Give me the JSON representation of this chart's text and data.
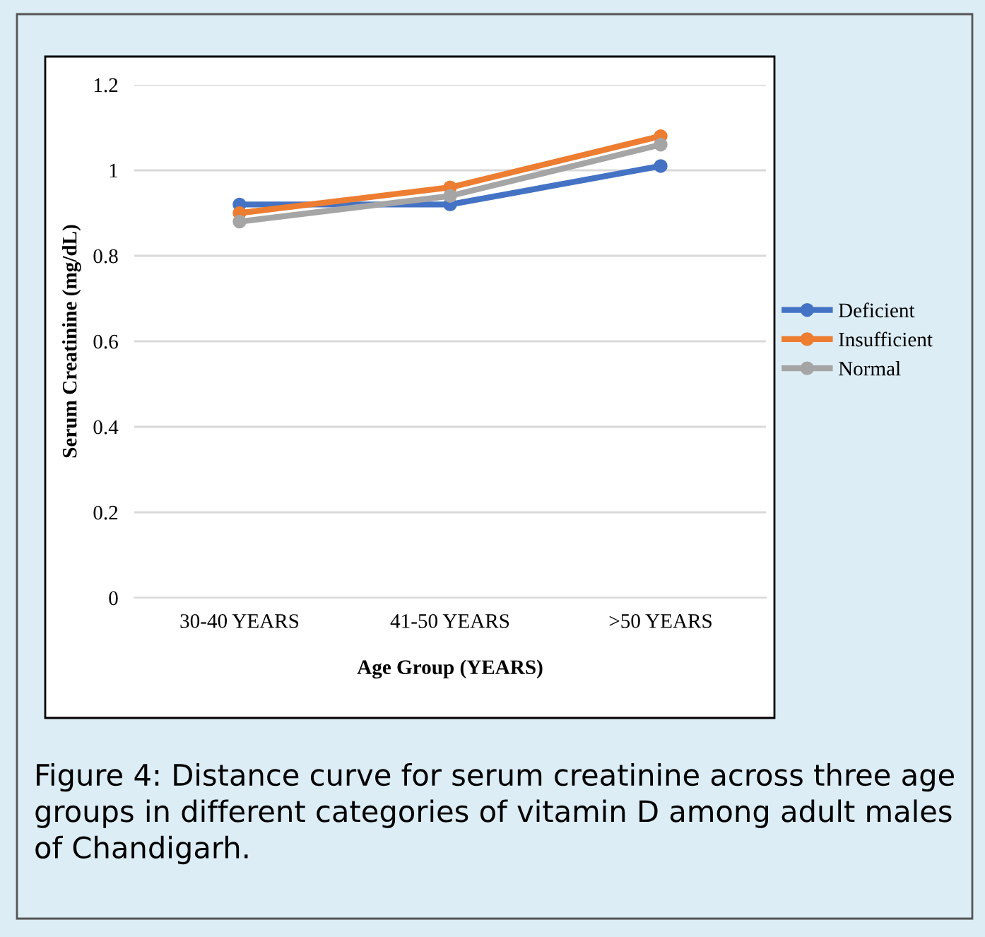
{
  "chart_data": {
    "type": "line",
    "xlabel": "Age Group (YEARS)",
    "ylabel": "Serum Creatinine (mg/dL)",
    "categories": [
      "30-40 YEARS",
      "41-50 YEARS",
      ">50 YEARS"
    ],
    "series": [
      {
        "name": "Deficient",
        "color": "#4472c4",
        "values": [
          0.92,
          0.92,
          1.01
        ]
      },
      {
        "name": "Insufficient",
        "color": "#ed7d31",
        "values": [
          0.9,
          0.96,
          1.08
        ]
      },
      {
        "name": "Normal",
        "color": "#a5a5a5",
        "values": [
          0.88,
          0.94,
          1.06
        ]
      }
    ],
    "ylim": [
      0,
      1.2
    ],
    "yticks": [
      0,
      0.2,
      0.4,
      0.6,
      0.8,
      1,
      1.2
    ],
    "grid": "y",
    "legend": "right",
    "marker": "circle",
    "line_style": "solid",
    "annotations": [
      "Figure 4: Distance curve for serum creatinine across three age groups in different categories of vitamin D among adult males of Chandigarh."
    ]
  }
}
